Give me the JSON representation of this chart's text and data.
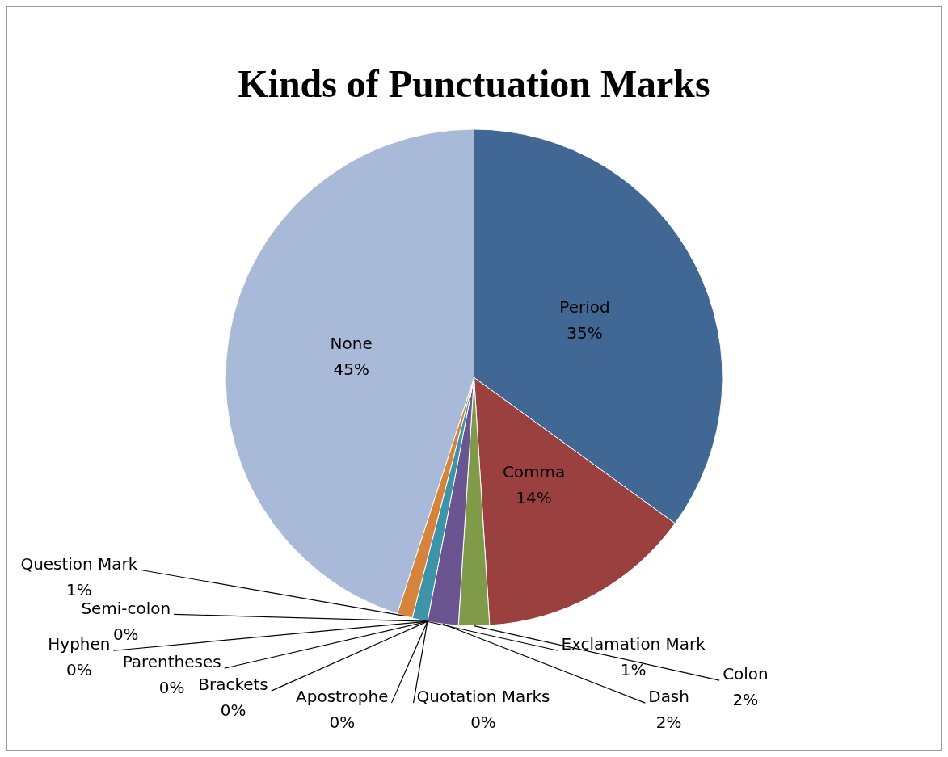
{
  "chart_data": {
    "type": "pie",
    "title": "Kinds of Punctuation Marks",
    "categories": [
      "Period",
      "Comma",
      "Colon",
      "Dash",
      "Quotation Marks",
      "Apostrophe",
      "Brackets",
      "Parentheses",
      "Hyphen",
      "Semi-colon",
      "Exclamation Mark",
      "Question Mark",
      "None"
    ],
    "values": [
      35,
      14,
      2,
      2,
      0,
      0,
      0,
      0,
      0,
      0,
      1,
      1,
      45
    ],
    "value_labels": [
      "35%",
      "14%",
      "2%",
      "2%",
      "0%",
      "0%",
      "0%",
      "0%",
      "0%",
      "0%",
      "1%",
      "1%",
      "45%"
    ],
    "colors": [
      "#416795",
      "#9a413f",
      "#7f9b4a",
      "#6b5590",
      "#8064a2",
      "#4bacc6",
      "#f79646",
      "#2c4d75",
      "#772c2a",
      "#5f7530",
      "#3d93a8",
      "#d6843b",
      "#a9b9d8"
    ]
  }
}
